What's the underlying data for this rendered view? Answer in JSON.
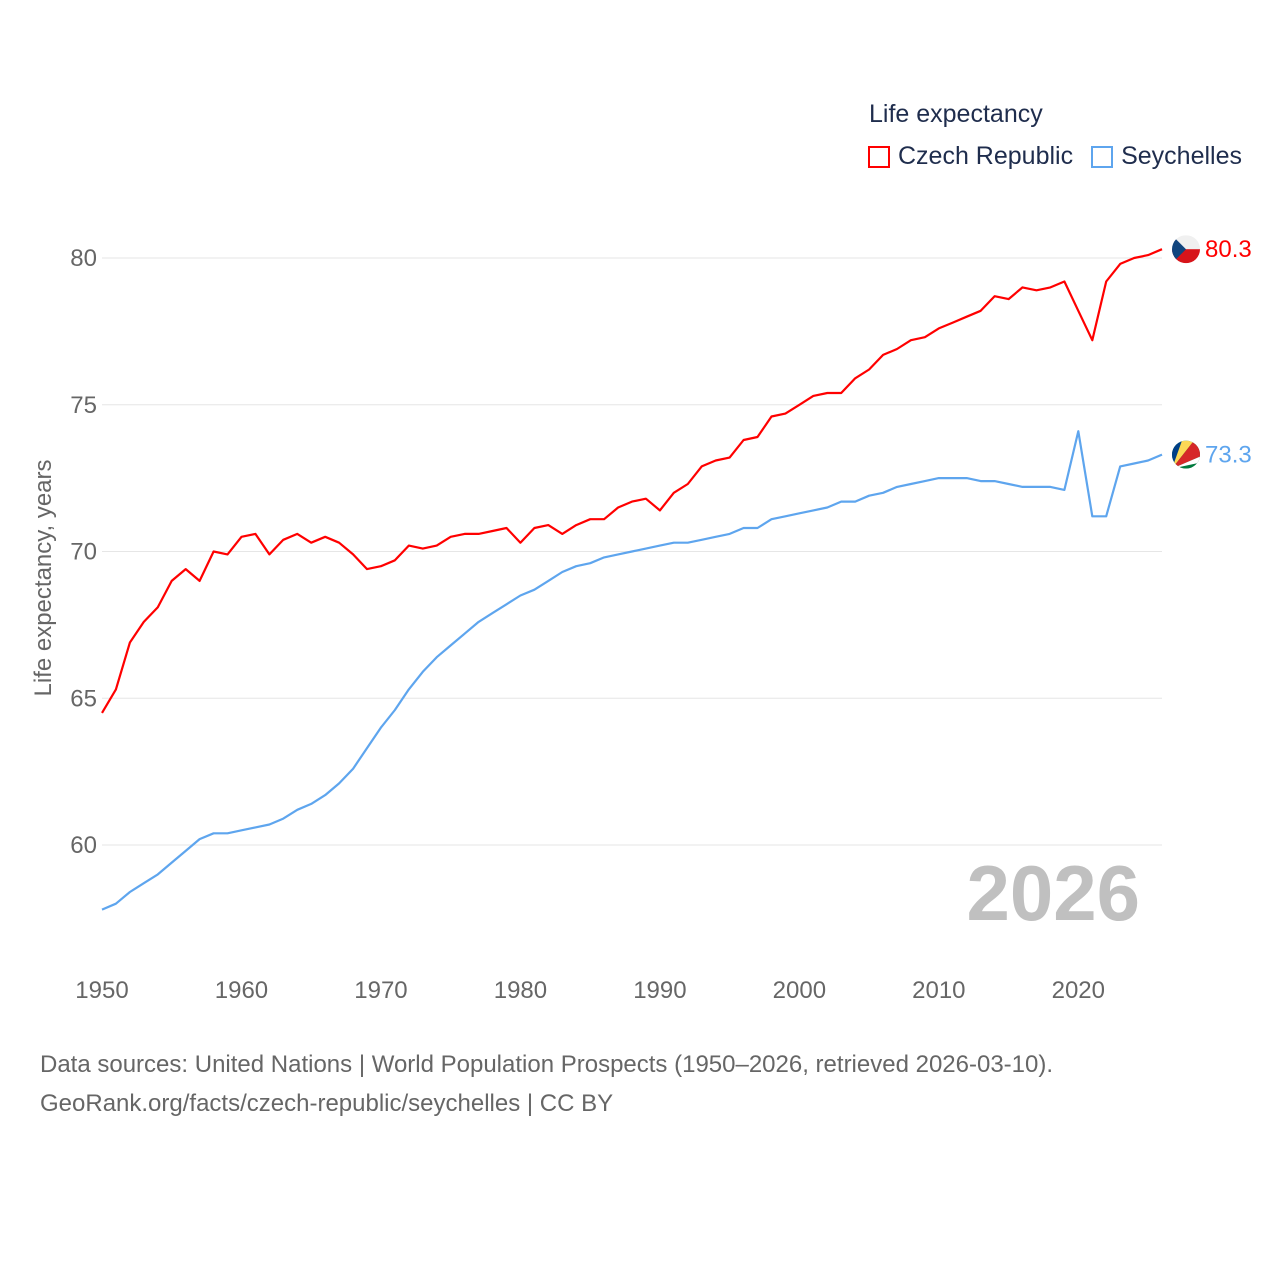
{
  "chart_data": {
    "type": "line",
    "title": "Life expectancy",
    "xlabel": "",
    "ylabel": "Life expectancy, years",
    "xlim": [
      1950,
      2026
    ],
    "ylim": [
      57.2,
      80.3
    ],
    "yticks": [
      60,
      65,
      70,
      75,
      80
    ],
    "xticks": [
      1950,
      1960,
      1970,
      1980,
      1990,
      2000,
      2010,
      2020
    ],
    "grid": true,
    "legend_position": "top-right",
    "year_watermark": "2026",
    "x": [
      1950,
      1951,
      1952,
      1953,
      1954,
      1955,
      1956,
      1957,
      1958,
      1959,
      1960,
      1961,
      1962,
      1963,
      1964,
      1965,
      1966,
      1967,
      1968,
      1969,
      1970,
      1971,
      1972,
      1973,
      1974,
      1975,
      1976,
      1977,
      1978,
      1979,
      1980,
      1981,
      1982,
      1983,
      1984,
      1985,
      1986,
      1987,
      1988,
      1989,
      1990,
      1991,
      1992,
      1993,
      1994,
      1995,
      1996,
      1997,
      1998,
      1999,
      2000,
      2001,
      2002,
      2003,
      2004,
      2005,
      2006,
      2007,
      2008,
      2009,
      2010,
      2011,
      2012,
      2013,
      2014,
      2015,
      2016,
      2017,
      2018,
      2019,
      2020,
      2021,
      2022,
      2023,
      2024,
      2025,
      2026
    ],
    "series": [
      {
        "name": "Czech Republic",
        "color": "#ff0000",
        "end_label": "80.3",
        "values": [
          64.5,
          65.3,
          66.9,
          67.6,
          68.1,
          69.0,
          69.4,
          69.0,
          70.0,
          69.9,
          70.5,
          70.6,
          69.9,
          70.4,
          70.6,
          70.3,
          70.5,
          70.3,
          69.9,
          69.4,
          69.5,
          69.7,
          70.2,
          70.1,
          70.2,
          70.5,
          70.6,
          70.6,
          70.7,
          70.8,
          70.3,
          70.8,
          70.9,
          70.6,
          70.9,
          71.1,
          71.1,
          71.5,
          71.7,
          71.8,
          71.4,
          72.0,
          72.3,
          72.9,
          73.1,
          73.2,
          73.8,
          73.9,
          74.6,
          74.7,
          75.0,
          75.3,
          75.4,
          75.4,
          75.9,
          76.2,
          76.7,
          76.9,
          77.2,
          77.3,
          77.6,
          77.8,
          78.0,
          78.2,
          78.7,
          78.6,
          79.0,
          78.9,
          79.0,
          79.2,
          78.2,
          77.2,
          79.2,
          79.8,
          80.0,
          80.1,
          80.3
        ]
      },
      {
        "name": "Seychelles",
        "color": "#5ea5ee",
        "end_label": "73.3",
        "values": [
          57.8,
          58.0,
          58.4,
          58.7,
          59.0,
          59.4,
          59.8,
          60.2,
          60.4,
          60.4,
          60.5,
          60.6,
          60.7,
          60.9,
          61.2,
          61.4,
          61.7,
          62.1,
          62.6,
          63.3,
          64.0,
          64.6,
          65.3,
          65.9,
          66.4,
          66.8,
          67.2,
          67.6,
          67.9,
          68.2,
          68.5,
          68.7,
          69.0,
          69.3,
          69.5,
          69.6,
          69.8,
          69.9,
          70.0,
          70.1,
          70.2,
          70.3,
          70.3,
          70.4,
          70.5,
          70.6,
          70.8,
          70.8,
          71.1,
          71.2,
          71.3,
          71.4,
          71.5,
          71.7,
          71.7,
          71.9,
          72.0,
          72.2,
          72.3,
          72.4,
          72.5,
          72.5,
          72.5,
          72.4,
          72.4,
          72.3,
          72.2,
          72.2,
          72.2,
          72.1,
          74.1,
          71.2,
          71.2,
          72.9,
          73.0,
          73.1,
          73.3
        ]
      }
    ]
  },
  "source": {
    "line1": "Data sources: United Nations | World Population Prospects (1950–2026, retrieved 2026-03-10).",
    "line2": "GeoRank.org/facts/czech-republic/seychelles | CC BY"
  }
}
